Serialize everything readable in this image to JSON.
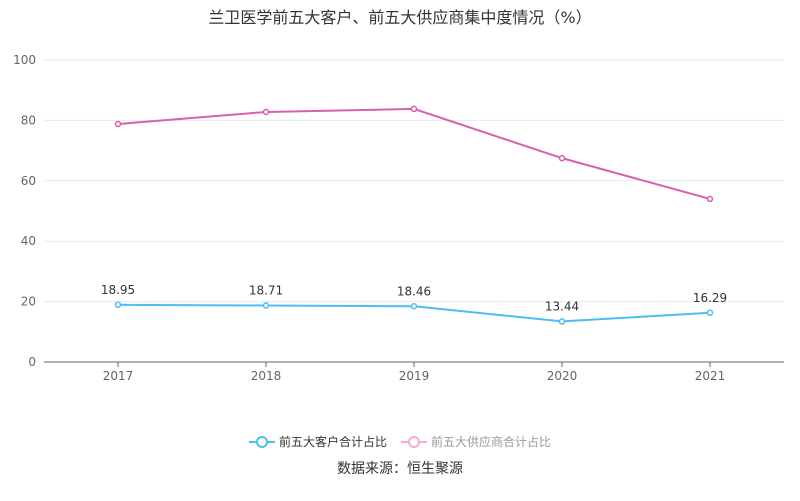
{
  "chart_data": {
    "type": "line",
    "title": "兰卫医学前五大客户、前五大供应商集中度情况（%）",
    "categories": [
      "2017",
      "2018",
      "2019",
      "2020",
      "2021"
    ],
    "ylim": [
      0,
      100
    ],
    "yticks": [
      0,
      20,
      40,
      60,
      80,
      100
    ],
    "grid": true,
    "legend_position": "bottom",
    "series": [
      {
        "name": "前五大客户合计占比",
        "values": [
          18.95,
          18.71,
          18.46,
          13.44,
          16.29
        ],
        "color": "#4dbef5",
        "labels": [
          "18.95",
          "18.71",
          "18.46",
          "13.44",
          "16.29"
        ]
      },
      {
        "name": "前五大供应商合计占比",
        "values": [
          78.8,
          82.8,
          83.8,
          67.5,
          54.0
        ],
        "color": "#d660ae"
      }
    ]
  },
  "source": "数据来源：恒生聚源"
}
